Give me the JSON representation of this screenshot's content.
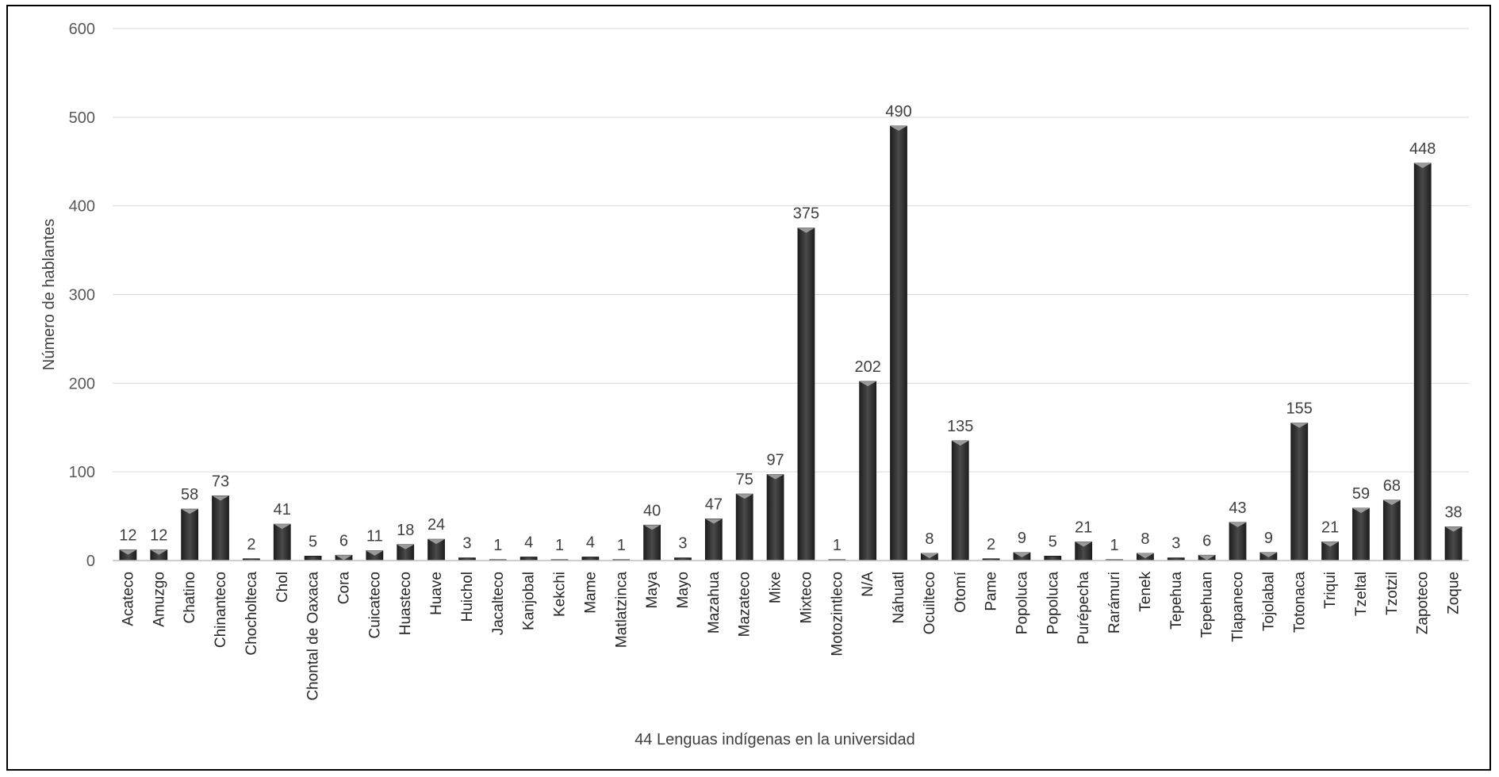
{
  "chart_data": {
    "type": "bar",
    "xlabel": "44 Lenguas indígenas en la universidad",
    "ylabel": "Número de hablantes",
    "ylim": [
      0,
      600
    ],
    "yticks": [
      0,
      100,
      200,
      300,
      400,
      500,
      600
    ],
    "grid": true,
    "legend": "none",
    "bar_color": "#3a3a3a",
    "categories": [
      "Acateco",
      "Amuzgo",
      "Chatino",
      "Chinanteco",
      "Chocholteca",
      "Chol",
      "Chontal de Oaxaca",
      "Cora",
      "Cuicateco",
      "Huasteco",
      "Huave",
      "Huichol",
      "Jacalteco",
      "Kanjobal",
      "Kekchi",
      "Mame",
      "Matlatzinca",
      "Maya",
      "Mayo",
      "Mazahua",
      "Mazateco",
      "Mixe",
      "Mixteco",
      "Motozintleco",
      "N/A",
      "Náhuatl",
      "Ocuilteco",
      "Otomí",
      "Pame",
      "Popoluca",
      "Popoluca",
      "Purépecha",
      "Rarámuri",
      "Tenek",
      "Tepehua",
      "Tepehuan",
      "Tlapaneco",
      "Tojolabal",
      "Totonaca",
      "Triqui",
      "Tzeltal",
      "Tzotzil",
      "Zapoteco",
      "Zoque"
    ],
    "values": [
      12,
      12,
      58,
      73,
      2,
      41,
      5,
      6,
      11,
      18,
      24,
      3,
      1,
      4,
      1,
      4,
      1,
      40,
      3,
      47,
      75,
      97,
      375,
      1,
      202,
      490,
      8,
      135,
      2,
      9,
      5,
      21,
      1,
      8,
      3,
      6,
      43,
      9,
      155,
      21,
      59,
      68,
      448,
      38
    ]
  }
}
